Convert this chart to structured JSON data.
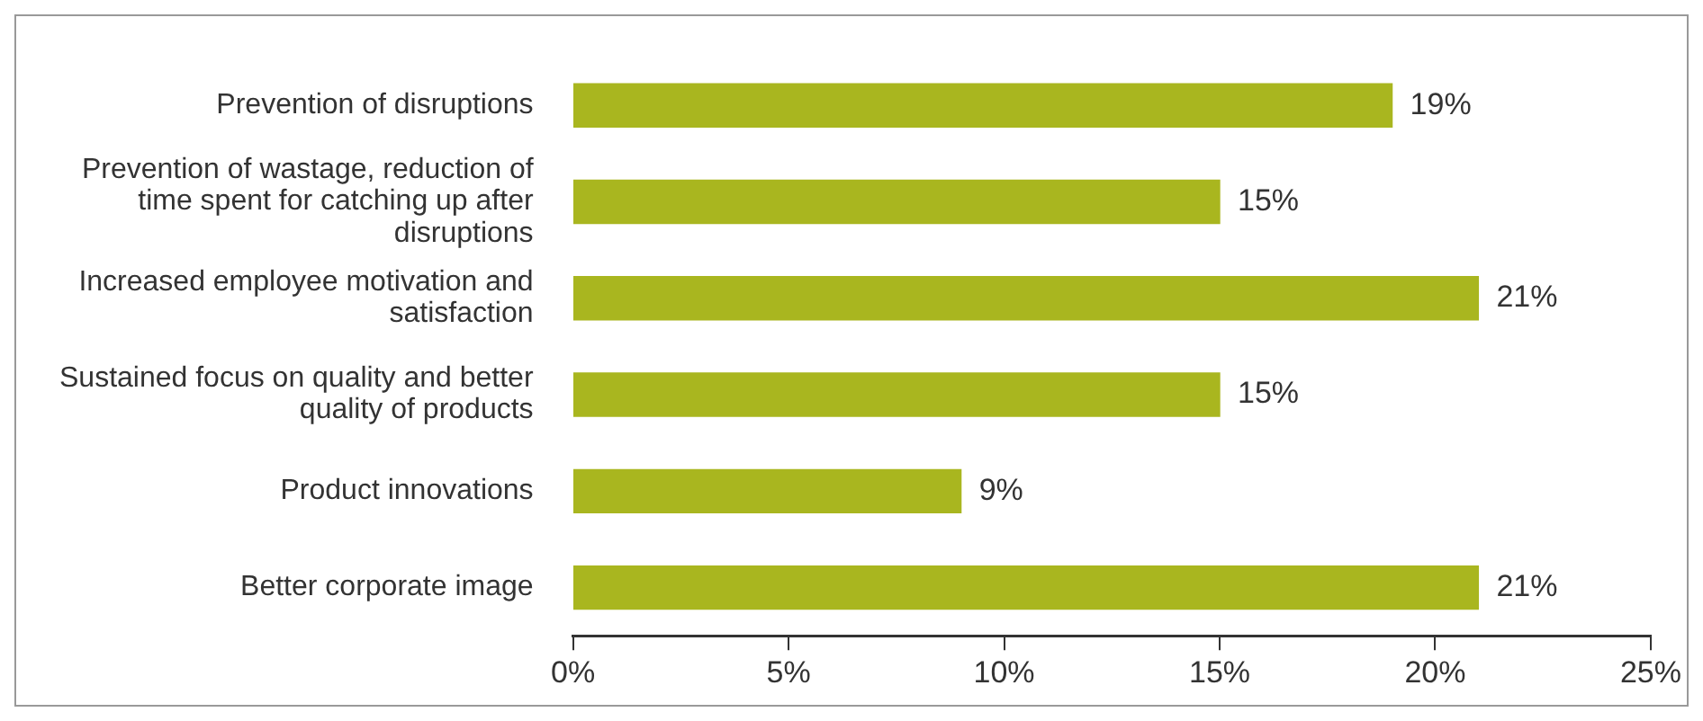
{
  "chart_data": {
    "type": "bar",
    "orientation": "horizontal",
    "categories": [
      "Prevention of disruptions",
      "Prevention of wastage, reduction of time spent for catching up after disruptions",
      "Increased employee motivation and satisfaction",
      "Sustained focus on quality and better quality of products",
      "Product innovations",
      "Better corporate image"
    ],
    "values": [
      19,
      15,
      21,
      15,
      9,
      21
    ],
    "value_labels": [
      "19%",
      "15%",
      "21%",
      "15%",
      "9%",
      "21%"
    ],
    "color": "#a9b61f",
    "xlim": [
      0,
      25
    ],
    "xticks": [
      {
        "value": 0,
        "label": "0%"
      },
      {
        "value": 5,
        "label": "5%"
      },
      {
        "value": 10,
        "label": "10%"
      },
      {
        "value": 15,
        "label": "15%"
      },
      {
        "value": 20,
        "label": "20%"
      },
      {
        "value": 25,
        "label": "25%"
      }
    ],
    "grid": false,
    "legend": false
  }
}
